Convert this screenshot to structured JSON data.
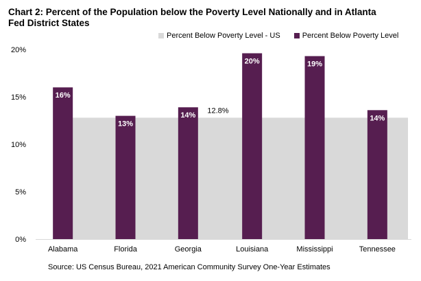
{
  "chart_data": {
    "type": "bar",
    "title": "Chart 2: Percent of the Population below the Poverty Level Nationally and in Atlanta Fed District States",
    "source": "Source: US Census Bureau, 2021 American Community Survey One-Year Estimates",
    "categories": [
      "Alabama",
      "Florida",
      "Georgia",
      "Louisiana",
      "Mississippi",
      "Tennessee"
    ],
    "series": [
      {
        "name": "Percent Below Poverty Level - US",
        "type": "area",
        "color": "#d9d9d9",
        "values": [
          12.8,
          12.8,
          12.8,
          12.8,
          12.8,
          12.8
        ],
        "label": "12.8%"
      },
      {
        "name": "Percent Below Poverty Level",
        "type": "bar",
        "color": "#561e50",
        "values": [
          16.0,
          13.0,
          13.9,
          19.6,
          19.3,
          13.6
        ],
        "labels": [
          "16%",
          "13%",
          "14%",
          "20%",
          "19%",
          "14%"
        ]
      }
    ],
    "yticks": [
      "0%",
      "5%",
      "10%",
      "15%",
      "20%"
    ],
    "ylim": [
      0,
      20
    ],
    "grid": false,
    "legend": "top-right"
  }
}
